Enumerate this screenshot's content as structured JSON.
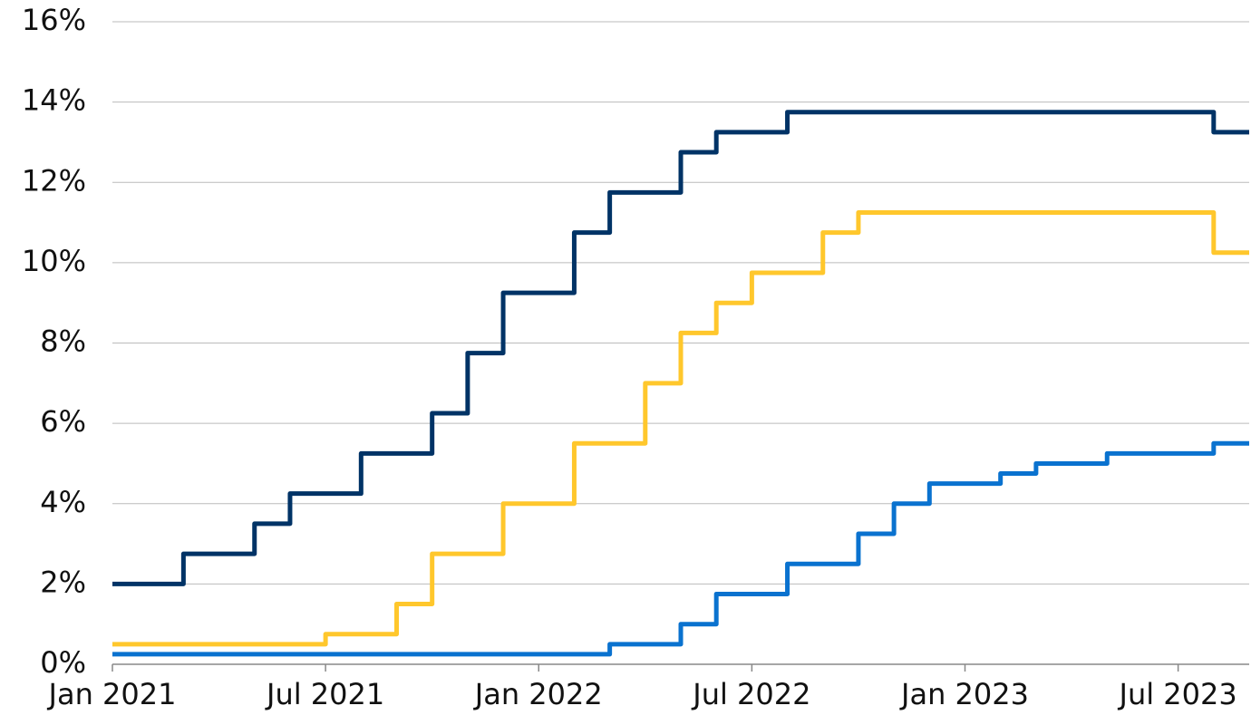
{
  "chart_data": {
    "type": "line",
    "step": true,
    "series": [
      {
        "color": "#003366",
        "x": [
          "2021-01",
          "2021-03",
          "2021-05",
          "2021-06",
          "2021-08",
          "2021-10",
          "2021-11",
          "2021-12",
          "2022-02",
          "2022-03",
          "2022-05",
          "2022-06",
          "2022-08",
          "2023-08"
        ],
        "values": [
          2.0,
          2.75,
          3.5,
          4.25,
          5.25,
          6.25,
          7.75,
          9.25,
          10.75,
          11.75,
          12.75,
          13.25,
          13.75,
          13.25
        ]
      },
      {
        "color": "#ffc72c",
        "x": [
          "2021-01",
          "2021-07",
          "2021-09",
          "2021-10",
          "2021-12",
          "2022-02",
          "2022-04",
          "2022-05",
          "2022-06",
          "2022-07",
          "2022-09",
          "2022-10",
          "2023-08"
        ],
        "values": [
          0.5,
          0.75,
          1.5,
          2.75,
          4.0,
          5.5,
          7.0,
          8.25,
          9.0,
          9.75,
          10.75,
          11.25,
          10.25
        ]
      },
      {
        "color": "#0a72cf",
        "x": [
          "2021-01",
          "2022-03",
          "2022-05",
          "2022-06",
          "2022-08",
          "2022-10",
          "2022-11",
          "2022-12",
          "2023-02",
          "2023-03",
          "2023-05",
          "2023-08"
        ],
        "values": [
          0.25,
          0.5,
          1.0,
          1.75,
          2.5,
          3.25,
          4.0,
          4.5,
          4.75,
          5.0,
          5.25,
          5.5
        ]
      }
    ],
    "xlim": [
      "2021-01",
      "2023-09"
    ],
    "xticks": [
      {
        "value": "2021-01",
        "label": "Jan 2021"
      },
      {
        "value": "2021-07",
        "label": "Jul 2021"
      },
      {
        "value": "2022-01",
        "label": "Jan 2022"
      },
      {
        "value": "2022-07",
        "label": "Jul 2022"
      },
      {
        "value": "2023-01",
        "label": "Jan 2023"
      },
      {
        "value": "2023-07",
        "label": "Jul 2023"
      }
    ],
    "ylim": [
      0,
      16
    ],
    "yticks": [
      {
        "value": 0,
        "label": "0%"
      },
      {
        "value": 2,
        "label": "2%"
      },
      {
        "value": 4,
        "label": "4%"
      },
      {
        "value": 6,
        "label": "6%"
      },
      {
        "value": 8,
        "label": "8%"
      },
      {
        "value": 10,
        "label": "10%"
      },
      {
        "value": 12,
        "label": "12%"
      },
      {
        "value": 14,
        "label": "14%"
      },
      {
        "value": 16,
        "label": "16%"
      }
    ],
    "grid": true
  }
}
